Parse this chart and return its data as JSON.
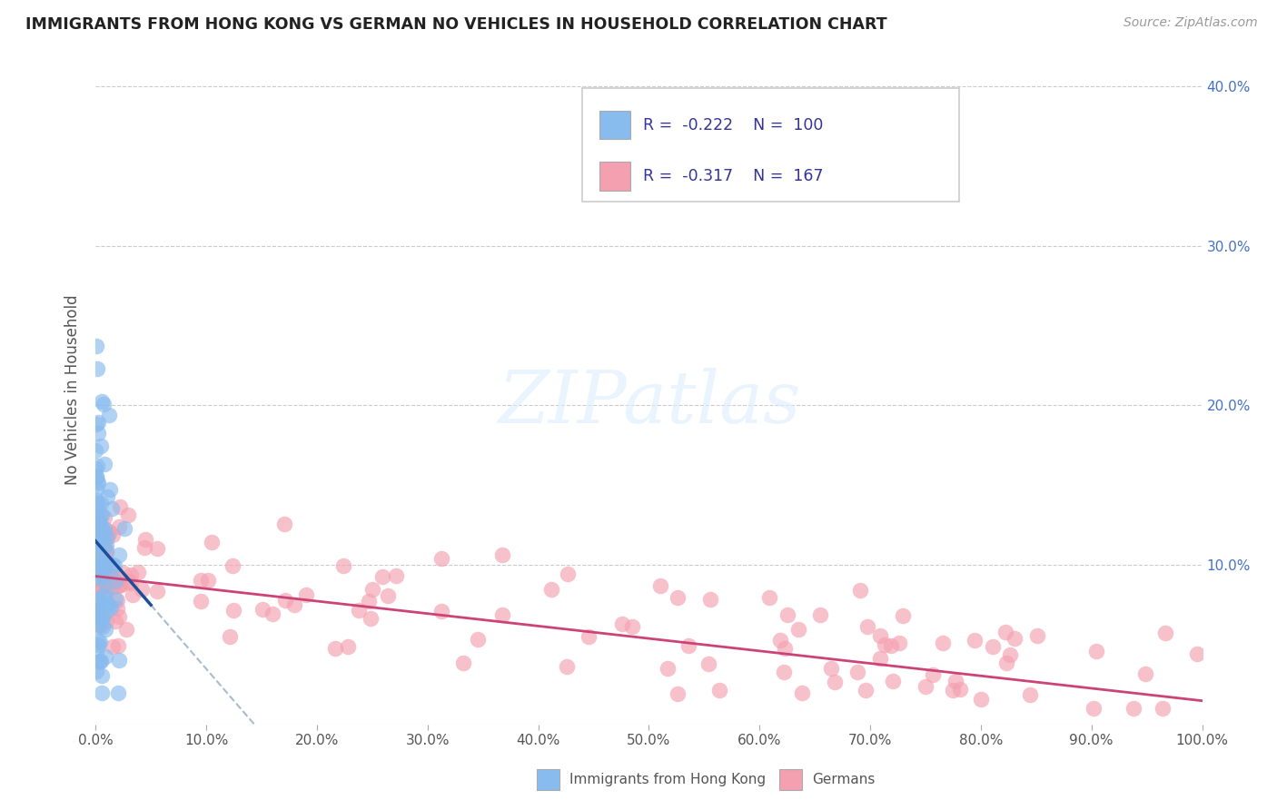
{
  "title": "IMMIGRANTS FROM HONG KONG VS GERMAN NO VEHICLES IN HOUSEHOLD CORRELATION CHART",
  "source_text": "Source: ZipAtlas.com",
  "ylabel": "No Vehicles in Household",
  "legend_bottom": [
    "Immigrants from Hong Kong",
    "Germans"
  ],
  "hk_R": -0.222,
  "hk_N": 100,
  "de_R": -0.317,
  "de_N": 167,
  "hk_color": "#88bbee",
  "de_color": "#f4a0b0",
  "hk_line_color": "#1a4f99",
  "de_line_color": "#cc4477",
  "trendline_extend_dash_color": "#aabbcc",
  "watermark": "ZIPatlas",
  "xlim": [
    0.0,
    1.0
  ],
  "ylim": [
    0.0,
    0.42
  ],
  "x_ticks": [
    0.0,
    0.1,
    0.2,
    0.3,
    0.4,
    0.5,
    0.6,
    0.7,
    0.8,
    0.9,
    1.0
  ],
  "x_tick_labels": [
    "0.0%",
    "10.0%",
    "20.0%",
    "30.0%",
    "40.0%",
    "50.0%",
    "60.0%",
    "70.0%",
    "80.0%",
    "90.0%",
    "100.0%"
  ],
  "y_ticks": [
    0.0,
    0.1,
    0.2,
    0.3,
    0.4
  ],
  "y_tick_labels_right": [
    "",
    "10.0%",
    "20.0%",
    "30.0%",
    "40.0%"
  ],
  "grid_color": "#cccccc",
  "background_color": "#ffffff",
  "hk_scatter_seed": 42,
  "de_scatter_seed": 99
}
